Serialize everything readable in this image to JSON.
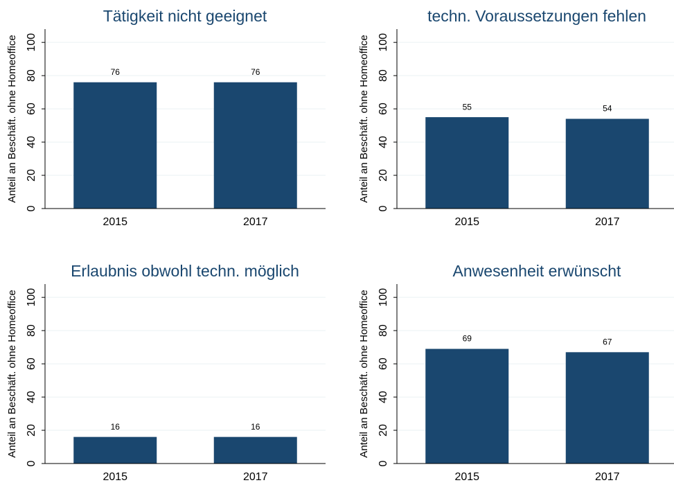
{
  "chart_data": [
    {
      "type": "bar",
      "title": "Tätigkeit nicht geeignet",
      "ylabel": "Anteil an Beschäft. ohne Homeoffice",
      "categories": [
        "2015",
        "2017"
      ],
      "values": [
        76,
        76
      ],
      "color": "#1a476f",
      "ylim": [
        0,
        108
      ],
      "yticks": [
        0,
        20,
        40,
        60,
        80,
        100
      ],
      "grid": true
    },
    {
      "type": "bar",
      "title": "techn. Voraussetzungen fehlen",
      "ylabel": "Anteil an Beschäft. ohne Homeoffice",
      "categories": [
        "2015",
        "2017"
      ],
      "values": [
        55,
        54
      ],
      "color": "#1a476f",
      "ylim": [
        0,
        108
      ],
      "yticks": [
        0,
        20,
        40,
        60,
        80,
        100
      ],
      "grid": true
    },
    {
      "type": "bar",
      "title": "Erlaubnis obwohl techn. möglich",
      "ylabel": "Anteil an Beschäft. ohne Homeoffice",
      "categories": [
        "2015",
        "2017"
      ],
      "values": [
        16,
        16
      ],
      "color": "#1a476f",
      "ylim": [
        0,
        108
      ],
      "yticks": [
        0,
        20,
        40,
        60,
        80,
        100
      ],
      "grid": true
    },
    {
      "type": "bar",
      "title": "Anwesenheit erwünscht",
      "ylabel": "Anteil an Beschäft. ohne Homeoffice",
      "categories": [
        "2015",
        "2017"
      ],
      "values": [
        69,
        67
      ],
      "color": "#1a476f",
      "ylim": [
        0,
        108
      ],
      "yticks": [
        0,
        20,
        40,
        60,
        80,
        100
      ],
      "grid": true
    }
  ]
}
